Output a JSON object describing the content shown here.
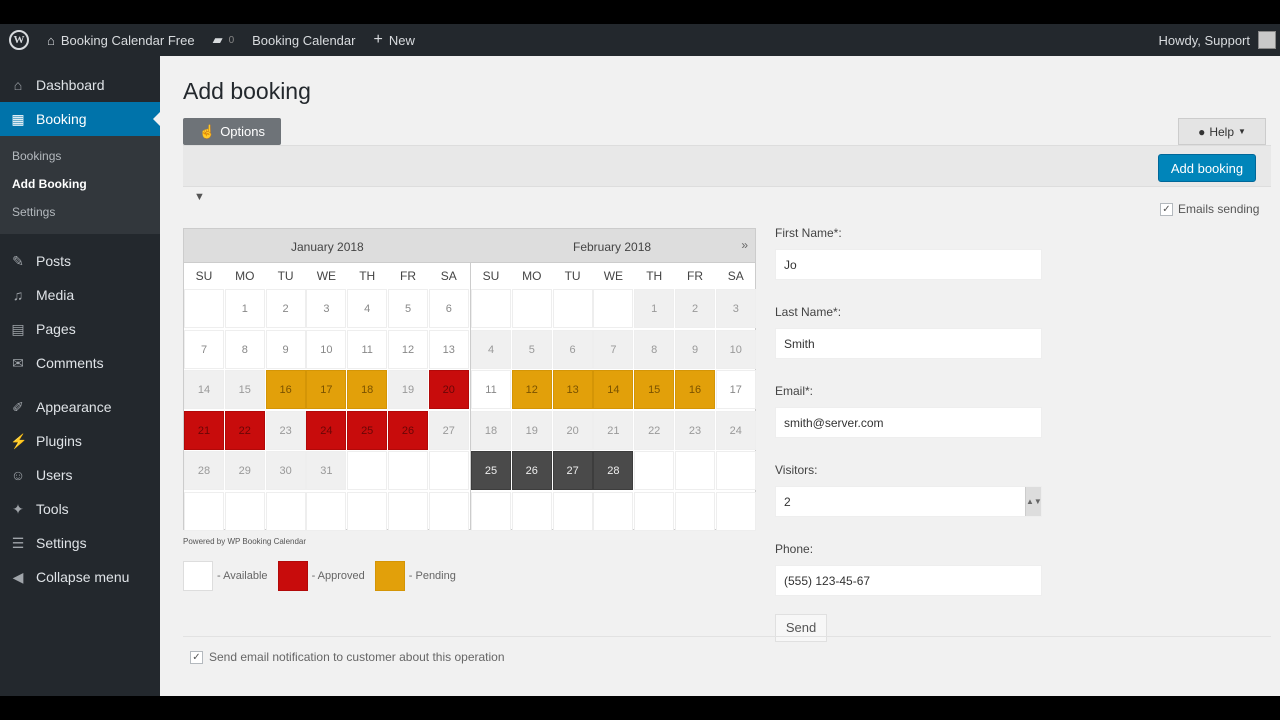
{
  "topbar": {
    "site_name": "Booking Calendar Free",
    "comments_count": "0",
    "plugin_link": "Booking Calendar",
    "new_label": "New",
    "howdy": "Howdy, Support"
  },
  "sidebar": {
    "items": [
      {
        "label": "Dashboard",
        "icon": "dashboard-icon",
        "glyph": "⌂"
      },
      {
        "label": "Booking",
        "icon": "calendar-icon",
        "glyph": "▦"
      },
      {
        "label": "Posts",
        "icon": "pin-icon",
        "glyph": "✎"
      },
      {
        "label": "Media",
        "icon": "media-icon",
        "glyph": "♫"
      },
      {
        "label": "Pages",
        "icon": "pages-icon",
        "glyph": "▤"
      },
      {
        "label": "Comments",
        "icon": "comment-icon",
        "glyph": "✉"
      },
      {
        "label": "Appearance",
        "icon": "brush-icon",
        "glyph": "✐"
      },
      {
        "label": "Plugins",
        "icon": "plug-icon",
        "glyph": "⚡"
      },
      {
        "label": "Users",
        "icon": "user-icon",
        "glyph": "☺"
      },
      {
        "label": "Tools",
        "icon": "wrench-icon",
        "glyph": "✦"
      },
      {
        "label": "Settings",
        "icon": "settings-icon",
        "glyph": "☰"
      },
      {
        "label": "Collapse menu",
        "icon": "collapse-icon",
        "glyph": "◀"
      }
    ],
    "submenu": [
      "Bookings",
      "Add Booking",
      "Settings"
    ]
  },
  "page": {
    "title": "Add booking",
    "options_label": "Options",
    "help_label": "Help",
    "add_booking_label": "Add booking",
    "emails_sending_label": "Emails sending"
  },
  "calendar": {
    "months": [
      "January 2018",
      "February 2018"
    ],
    "day_names": [
      "SU",
      "MO",
      "TU",
      "WE",
      "TH",
      "FR",
      "SA"
    ],
    "next_glyph": "»",
    "january": [
      [
        "",
        "1",
        "2",
        "3",
        "4",
        "5",
        "6"
      ],
      [
        "7",
        "8",
        "9",
        "10",
        "11",
        "12",
        "13"
      ],
      [
        "14",
        "15",
        "16",
        "17",
        "18",
        "19",
        "20"
      ],
      [
        "21",
        "22",
        "23",
        "24",
        "25",
        "26",
        "27"
      ],
      [
        "28",
        "29",
        "30",
        "31",
        "",
        "",
        ""
      ],
      [
        "",
        "",
        "",
        "",
        "",
        "",
        ""
      ]
    ],
    "january_status": [
      [
        "blank",
        "avail",
        "avail",
        "avail",
        "avail",
        "avail",
        "avail"
      ],
      [
        "avail",
        "avail",
        "avail",
        "avail",
        "avail",
        "avail",
        "avail"
      ],
      [
        "past",
        "past",
        "pending",
        "pending",
        "pending",
        "past",
        "approved"
      ],
      [
        "approved",
        "approved",
        "past",
        "approved",
        "approved",
        "approved",
        "past"
      ],
      [
        "past",
        "past",
        "past",
        "past",
        "blank",
        "blank",
        "blank"
      ],
      [
        "blank",
        "blank",
        "blank",
        "blank",
        "blank",
        "blank",
        "blank"
      ]
    ],
    "february": [
      [
        "",
        "",
        "",
        "",
        "1",
        "2",
        "3"
      ],
      [
        "4",
        "5",
        "6",
        "7",
        "8",
        "9",
        "10"
      ],
      [
        "11",
        "12",
        "13",
        "14",
        "15",
        "16",
        "17"
      ],
      [
        "18",
        "19",
        "20",
        "21",
        "22",
        "23",
        "24"
      ],
      [
        "25",
        "26",
        "27",
        "28",
        "",
        "",
        ""
      ],
      [
        "",
        "",
        "",
        "",
        "",
        "",
        ""
      ]
    ],
    "february_status": [
      [
        "blank",
        "blank",
        "blank",
        "blank",
        "past",
        "past",
        "past"
      ],
      [
        "past",
        "past",
        "past",
        "past",
        "past",
        "past",
        "past"
      ],
      [
        "avail",
        "pending",
        "pending",
        "pending",
        "pending",
        "pending",
        "avail"
      ],
      [
        "past",
        "past",
        "past",
        "past",
        "past",
        "past",
        "past"
      ],
      [
        "dark",
        "dark",
        "dark",
        "dark",
        "blank",
        "blank",
        "blank"
      ],
      [
        "blank",
        "blank",
        "blank",
        "blank",
        "blank",
        "blank",
        "blank"
      ]
    ],
    "powered_by": "Powered by WP Booking Calendar"
  },
  "legend": {
    "available": "- Available",
    "approved": "- Approved",
    "pending": "- Pending"
  },
  "form": {
    "first_name_label": "First Name*:",
    "first_name_value": "Jo",
    "last_name_label": "Last Name*:",
    "last_name_value": "Smith",
    "email_label": "Email*:",
    "email_value": "smith@server.com",
    "visitors_label": "Visitors:",
    "visitors_value": "2",
    "phone_label": "Phone:",
    "phone_value": "(555) 123-45-67",
    "send_label": "Send"
  },
  "notify_label": "Send email notification to customer about this operation",
  "colors": {
    "approved": "#c80c0c",
    "pending": "#e2a00a",
    "accent": "#0073aa",
    "button": "#0085ba"
  }
}
